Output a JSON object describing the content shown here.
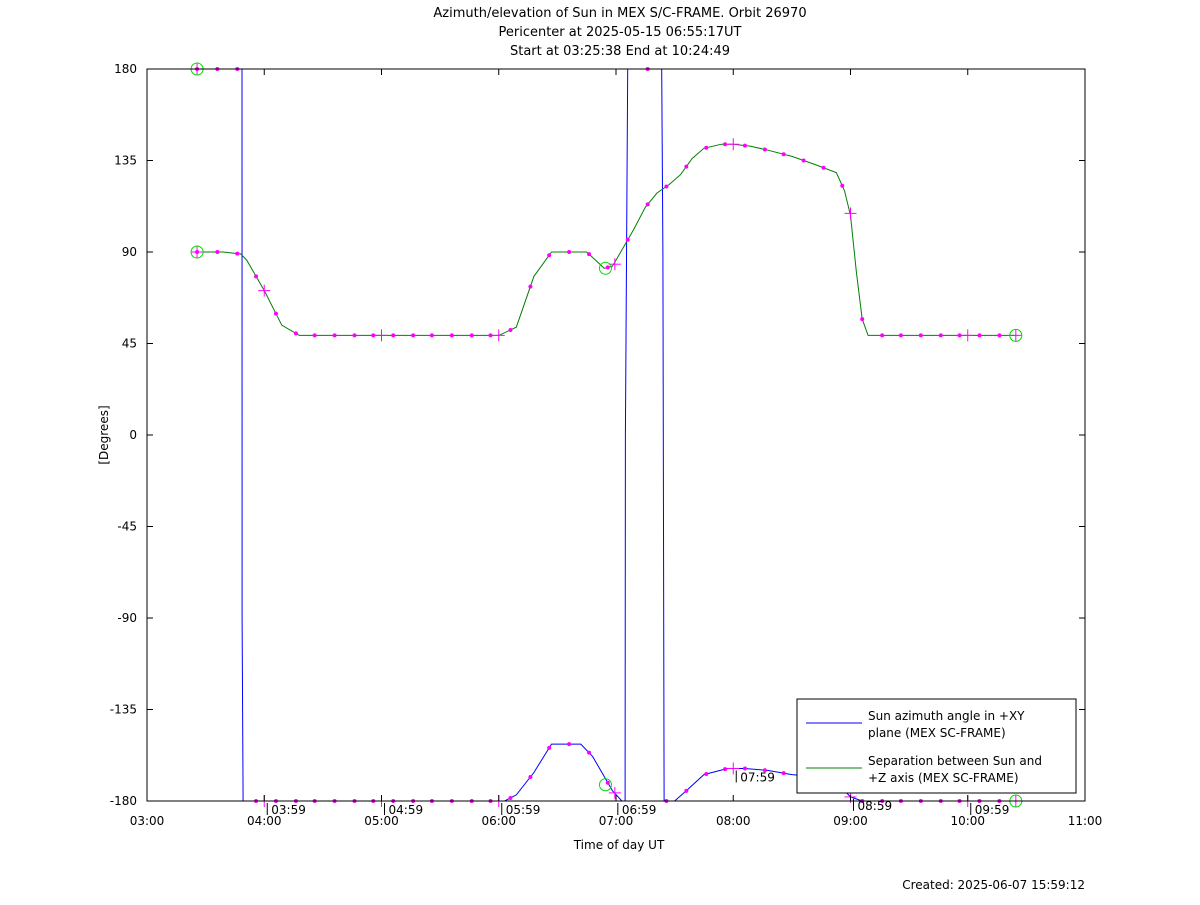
{
  "chart_data": {
    "type": "line",
    "title": "Azimuth/elevation of Sun in MEX S/C-FRAME.  Orbit 26970",
    "subtitle_1": "Pericenter at 2025-05-15 06:55:17UT",
    "subtitle_2": "Start at 03:25:38 End at 10:24:49",
    "xlabel": "Time of day UT",
    "ylabel": "[Degrees]",
    "xlim": [
      3.0,
      11.0
    ],
    "ylim": [
      -180,
      180
    ],
    "x_ticks": [
      3,
      4,
      5,
      6,
      7,
      8,
      9,
      10,
      11
    ],
    "x_tick_labels": [
      "03:00",
      "04:00",
      "05:00",
      "06:00",
      "07:00",
      "08:00",
      "09:00",
      "10:00",
      "11:00"
    ],
    "y_ticks": [
      180,
      135,
      90,
      45,
      0,
      -45,
      -90,
      -135,
      -180
    ],
    "y_tick_labels": [
      "180",
      "135",
      "90",
      "45",
      "0",
      "-45",
      "-90",
      "-135",
      "-180"
    ],
    "grid": false,
    "legend_position": "bottom-right",
    "created": "Created: 2025-06-07 15:59:12",
    "series": [
      {
        "name": "Sun azimuth angle in +XY plane (MEX SC-FRAME)",
        "legend_lines": [
          "Sun azimuth angle in +XY",
          "plane (MEX SC-FRAME)"
        ],
        "color": "#0000ff",
        "x": [
          3.427,
          3.65,
          3.81,
          3.811,
          3.82,
          3.83,
          4.0,
          4.5,
          5.0,
          5.5,
          5.95,
          6.05,
          6.15,
          6.3,
          6.45,
          6.6,
          6.7,
          6.8,
          6.9,
          6.97,
          7.05,
          7.078,
          7.08,
          7.1,
          7.13,
          7.35,
          7.39,
          7.4,
          7.41,
          7.5,
          7.6,
          7.75,
          7.95,
          8.1,
          8.3,
          8.5,
          8.7,
          8.85,
          8.95,
          9.0,
          9.1,
          9.3,
          9.5,
          9.8,
          10.0,
          10.2,
          10.4
        ],
        "y": [
          180,
          180,
          180,
          -90,
          -180,
          -180,
          -180,
          -180,
          -180,
          -180,
          -180,
          -180,
          -177,
          -166,
          -152,
          -152,
          -152,
          -158,
          -168,
          -175,
          -180,
          -180,
          0,
          180,
          180,
          180,
          180,
          90,
          -180,
          -180,
          -175,
          -167,
          -164,
          -164,
          -165,
          -167,
          -168,
          -170,
          -175,
          -178,
          -180,
          -180,
          -180,
          -180,
          -180,
          -180,
          -180
        ]
      },
      {
        "name": "Separation between Sun and +Z axis (MEX SC-FRAME)",
        "legend_lines": [
          "Separation between Sun and",
          "+Z axis (MEX SC-FRAME)"
        ],
        "color": "#008000",
        "x": [
          3.427,
          3.65,
          3.8,
          3.85,
          4.0,
          4.15,
          4.3,
          4.5,
          4.8,
          5.0,
          5.5,
          5.9,
          6.0,
          6.15,
          6.3,
          6.45,
          6.6,
          6.75,
          6.9,
          6.97,
          7.05,
          7.15,
          7.25,
          7.35,
          7.45,
          7.55,
          7.65,
          7.75,
          7.9,
          8.0,
          8.15,
          8.3,
          8.5,
          8.7,
          8.88,
          8.95,
          9.0,
          9.05,
          9.1,
          9.15,
          9.3,
          9.5,
          9.8,
          10.0,
          10.2,
          10.4
        ],
        "y": [
          90,
          90,
          89,
          86,
          71,
          54,
          49,
          49,
          49,
          49,
          49,
          49,
          49,
          53,
          78,
          90,
          90,
          90,
          82,
          83,
          91,
          101,
          112,
          119,
          123,
          128,
          136,
          141,
          143,
          143,
          142,
          140,
          137,
          133,
          129,
          120,
          108,
          80,
          57,
          49,
          49,
          49,
          49,
          49,
          49,
          49
        ]
      }
    ],
    "markers": {
      "circle_color": "#00dd00",
      "dot_color": "#ff00ff",
      "plus_color": "#ff00ff",
      "circles": [
        {
          "x": 3.427,
          "y": 180
        },
        {
          "x": 3.427,
          "y": 90
        },
        {
          "x": 6.91,
          "y": 82
        },
        {
          "x": 6.91,
          "y": -172
        },
        {
          "x": 10.41,
          "y": 49
        },
        {
          "x": 10.41,
          "y": -180
        }
      ],
      "plus": [
        {
          "x": 3.427,
          "y": 180
        },
        {
          "x": 3.427,
          "y": 90
        },
        {
          "x": 4.0,
          "y": 71
        },
        {
          "x": 4.0,
          "y": -180
        },
        {
          "x": 5.0,
          "y": 49
        },
        {
          "x": 5.0,
          "y": -180
        },
        {
          "x": 6.0,
          "y": 49
        },
        {
          "x": 6.0,
          "y": -180
        },
        {
          "x": 6.99,
          "y": 84
        },
        {
          "x": 6.99,
          "y": -176
        },
        {
          "x": 8.0,
          "y": 143
        },
        {
          "x": 8.0,
          "y": -164
        },
        {
          "x": 9.0,
          "y": 109
        },
        {
          "x": 9.0,
          "y": -178
        },
        {
          "x": 10.0,
          "y": 49
        },
        {
          "x": 10.0,
          "y": -180
        },
        {
          "x": 10.41,
          "y": 49
        },
        {
          "x": 10.41,
          "y": -180
        }
      ],
      "dots_x": [
        3.427,
        3.6,
        3.77,
        3.93,
        4.1,
        4.27,
        4.43,
        4.6,
        4.77,
        4.93,
        5.1,
        5.27,
        5.43,
        5.6,
        5.77,
        5.93,
        6.1,
        6.27,
        6.43,
        6.6,
        6.77,
        6.93,
        7.1,
        7.27,
        7.43,
        7.6,
        7.77,
        7.93,
        8.1,
        8.27,
        8.43,
        8.6,
        8.77,
        8.93,
        9.1,
        9.27,
        9.43,
        9.6,
        9.77,
        9.93,
        10.1,
        10.27
      ]
    },
    "time_labels": [
      {
        "x": 4.0,
        "y": -180,
        "label": "03:59"
      },
      {
        "x": 5.0,
        "y": -180,
        "label": "04:59"
      },
      {
        "x": 6.0,
        "y": -180,
        "label": "05:59"
      },
      {
        "x": 6.99,
        "y": -180,
        "label": "06:59"
      },
      {
        "x": 8.0,
        "y": -164,
        "label": "07:59"
      },
      {
        "x": 9.0,
        "y": -178,
        "label": "08:59"
      },
      {
        "x": 10.0,
        "y": -180,
        "label": "09:59"
      }
    ]
  }
}
